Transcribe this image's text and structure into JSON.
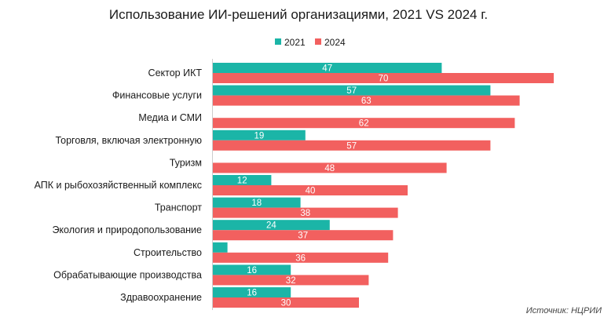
{
  "chart_data": {
    "type": "bar",
    "orientation": "horizontal",
    "title": "Использование ИИ-решений организациями, 2021 VS 2024 г.",
    "categories": [
      "Сектор ИКТ",
      "Финансовые услуги",
      "Медиа и СМИ",
      "Торговля, включая электронную",
      "Туризм",
      "АПК и рыбохозяйственный комплекс",
      "Транспорт",
      "Экология и природопользование",
      "Строительство",
      "Обрабатывающие производства",
      "Здравоохранение"
    ],
    "series": [
      {
        "name": "2021",
        "color": "#1bb5a7",
        "values": [
          47,
          57,
          null,
          19,
          null,
          12,
          18,
          24,
          3,
          16,
          16
        ],
        "labels": [
          "47",
          "57",
          "",
          "19",
          "",
          "12",
          "18",
          "24",
          "",
          "16",
          "16"
        ]
      },
      {
        "name": "2024",
        "color": "#f2605f",
        "values": [
          70,
          63,
          62,
          57,
          48,
          40,
          38,
          37,
          36,
          32,
          30
        ],
        "labels": [
          "70",
          "63",
          "62",
          "57",
          "48",
          "40",
          "38",
          "37",
          "36",
          "32",
          "30"
        ]
      }
    ],
    "xlim": [
      0,
      75
    ],
    "legend_position": "top-center",
    "grid": false
  },
  "source": "Источник: НЦРИИ"
}
